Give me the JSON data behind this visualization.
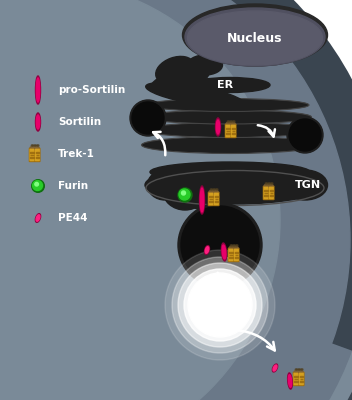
{
  "bg_color": "#ffffff",
  "cell_body_color": "#7a8a98",
  "cell_inner_color": "#5a6a78",
  "cell_dark_region": "#3a4550",
  "membrane_color": "#4a5560",
  "organelle_black": "#111111",
  "organelle_dark": "#1e1e1e",
  "organelle_mid": "#2a2a2a",
  "organelle_gray": "#3a3a3a",
  "organelle_edge": "#555555",
  "nucleus_color": "#505060",
  "nucleus_edge": "#666678",
  "pink_color": "#e8006a",
  "pink_dark": "#900040",
  "pink_bright": "#ff2080",
  "yellow_color": "#d4a020",
  "yellow_dark": "#a07010",
  "green_color": "#28cc28",
  "green_dark": "#107010",
  "white": "#ffffff",
  "tgn_label": "TGN",
  "er_label": "ER",
  "nucleus_label": "Nucleus",
  "legend": [
    "pro-Sortilin",
    "Sortilin",
    "Trek-1",
    "Furin",
    "PE44"
  ]
}
